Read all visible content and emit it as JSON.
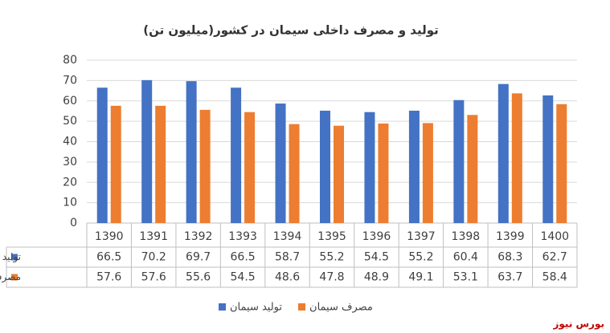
{
  "chart_data": {
    "type": "bar",
    "title": "تولید و مصرف داخلی سیمان در کشور(میلیون تن)",
    "categories": [
      "1390",
      "1391",
      "1392",
      "1393",
      "1394",
      "1395",
      "1396",
      "1397",
      "1398",
      "1399",
      "1400"
    ],
    "series": [
      {
        "name": "تولید سیمان",
        "color": "#4472c4",
        "values": [
          66.5,
          70.2,
          69.7,
          66.5,
          58.7,
          55.2,
          54.5,
          55.2,
          60.4,
          68.3,
          62.7
        ]
      },
      {
        "name": "مصرف سیمان",
        "color": "#ed7d31",
        "values": [
          57.6,
          57.6,
          55.6,
          54.5,
          48.6,
          47.8,
          48.9,
          49.1,
          53.1,
          63.7,
          58.4
        ]
      }
    ],
    "ylim": [
      0,
      80
    ],
    "yticks": [
      0,
      10,
      20,
      30,
      40,
      50,
      60,
      70,
      80
    ],
    "grid": true,
    "source": "بورس نیوز"
  }
}
